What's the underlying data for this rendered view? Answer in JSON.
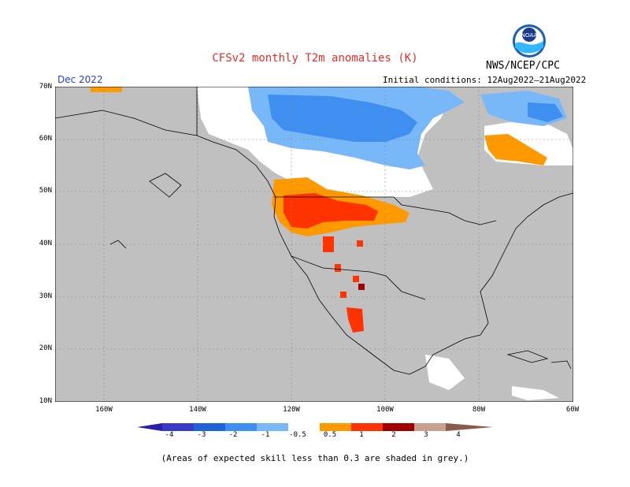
{
  "header": {
    "title": "CFSv2 monthly T2m anomalies (K)",
    "agency": "NWS/NCEP/CPC",
    "valid_month": "Dec 2022",
    "initial_conditions": "Initial conditions: 12Aug2022–21Aug2022"
  },
  "logo": {
    "name": "noaa-logo",
    "text": "NOAA"
  },
  "axes": {
    "lat_labels": [
      "70N",
      "60N",
      "50N",
      "40N",
      "30N",
      "20N",
      "10N"
    ],
    "lon_labels": [
      "160W",
      "140W",
      "120W",
      "100W",
      "80W",
      "60W"
    ]
  },
  "colorbar": {
    "levels": [
      "-4",
      "-3",
      "-2",
      "-1",
      "-0.5",
      "0.5",
      "1",
      "2",
      "3",
      "4"
    ],
    "colors": [
      "#2b1ea6",
      "#3a3ac8",
      "#1f63d6",
      "#3f8ff0",
      "#78b8f8",
      "#ffffff",
      "#ff9900",
      "#ff3300",
      "#a00000",
      "#c8a090",
      "#8a5a4a"
    ]
  },
  "map_colors": {
    "grey": "#c0c0c0",
    "white": "#ffffff",
    "light_blue": "#78b8f8",
    "mid_blue": "#3f8ff0",
    "orange": "#ff9900",
    "red": "#ff3300",
    "dark_red": "#a00000"
  },
  "footnote": "(Areas of expected skill less than 0.3 are shaded in grey.)"
}
